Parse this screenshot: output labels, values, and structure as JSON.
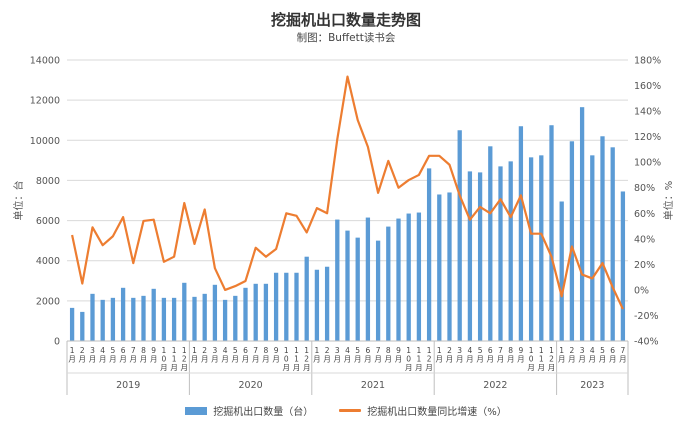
{
  "chart_data": {
    "type": "bar",
    "title": "挖掘机出口数量走势图",
    "subtitle": "制图：Buffett读书会",
    "y_left_label": "单位：台",
    "y_right_label": "单位：%",
    "y_left_range": [
      0,
      14000
    ],
    "y_left_ticks": [
      "0",
      "2000",
      "4000",
      "6000",
      "8000",
      "10000",
      "12000",
      "14000"
    ],
    "y_right_range": [
      -40,
      180
    ],
    "y_right_ticks": [
      "-40%",
      "-20%",
      "0%",
      "20%",
      "40%",
      "60%",
      "80%",
      "100%",
      "120%",
      "140%",
      "160%",
      "180%"
    ],
    "grid": true,
    "legend_position": "bottom",
    "years": [
      {
        "label": "2019",
        "months": 12
      },
      {
        "label": "2020",
        "months": 12
      },
      {
        "label": "2021",
        "months": 12
      },
      {
        "label": "2022",
        "months": 12
      },
      {
        "label": "2023",
        "months": 7
      }
    ],
    "month_labels": [
      "1月",
      "2月",
      "3月",
      "4月",
      "5月",
      "6月",
      "7月",
      "8月",
      "9月",
      "10月",
      "11月",
      "12月"
    ],
    "series": [
      {
        "name": "挖掘机出口数量（台）",
        "type": "bar",
        "color": "#5b9bd5",
        "values": [
          1650,
          1450,
          2350,
          2050,
          2150,
          2650,
          2150,
          2250,
          2600,
          2150,
          2150,
          2900,
          2200,
          2350,
          2800,
          2050,
          2250,
          2650,
          2850,
          2850,
          3400,
          3400,
          3400,
          4200,
          3550,
          3700,
          6050,
          5500,
          5150,
          6150,
          5000,
          5700,
          6100,
          6350,
          6400,
          8600,
          7300,
          7400,
          10500,
          8450,
          8400,
          9700,
          8700,
          8950,
          10700,
          9150,
          9250,
          10750,
          6950,
          9950,
          11650,
          9250,
          10200,
          9650,
          7450
        ]
      },
      {
        "name": "挖掘机出口数量同比增速（%）",
        "type": "line",
        "color": "#ed7d31",
        "values": [
          43,
          5,
          49,
          35,
          42,
          57,
          21,
          54,
          55,
          22,
          26,
          68,
          36,
          63,
          17,
          0,
          3,
          7,
          33,
          26,
          32,
          60,
          58,
          45,
          64,
          60,
          118,
          167,
          133,
          112,
          76,
          101,
          80,
          86,
          90,
          105,
          105,
          98,
          74,
          55,
          65,
          60,
          71,
          57,
          74,
          44,
          44,
          26,
          -5,
          34,
          12,
          9,
          21,
          2,
          -15
        ]
      }
    ]
  }
}
